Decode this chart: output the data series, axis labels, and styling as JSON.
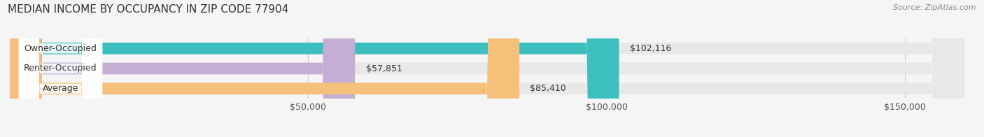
{
  "title": "MEDIAN INCOME BY OCCUPANCY IN ZIP CODE 77904",
  "source": "Source: ZipAtlas.com",
  "categories": [
    "Owner-Occupied",
    "Renter-Occupied",
    "Average"
  ],
  "values": [
    102116,
    57851,
    85410
  ],
  "labels": [
    "$102,116",
    "$57,851",
    "$85,410"
  ],
  "bar_colors": [
    "#3dbfbf",
    "#c4aed4",
    "#f5c07a"
  ],
  "bar_bg_color": "#e8e8e8",
  "xlim": [
    0,
    160000
  ],
  "xticks": [
    50000,
    100000,
    150000
  ],
  "xtick_labels": [
    "$50,000",
    "$100,000",
    "$150,000"
  ],
  "title_fontsize": 11,
  "label_fontsize": 9,
  "tick_fontsize": 9,
  "bar_height": 0.58,
  "figsize": [
    14.06,
    1.96
  ],
  "dpi": 100
}
